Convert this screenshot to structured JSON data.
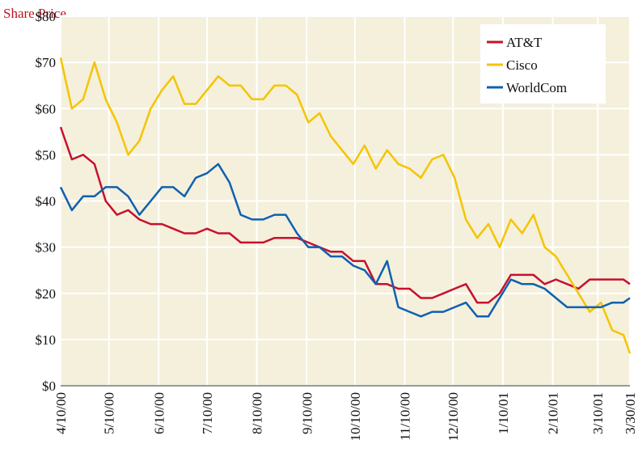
{
  "chart_data": {
    "type": "line",
    "title": "Share Price",
    "title_color": "#c0131e",
    "x": [
      "4/10/00",
      "4/17/00",
      "4/24/00",
      "5/1/00",
      "5/8/00",
      "5/15/00",
      "5/22/00",
      "5/29/00",
      "6/5/00",
      "6/12/00",
      "6/19/00",
      "6/26/00",
      "7/3/00",
      "7/10/00",
      "7/17/00",
      "7/24/00",
      "7/31/00",
      "8/7/00",
      "8/14/00",
      "8/21/00",
      "8/28/00",
      "9/4/00",
      "9/11/00",
      "9/18/00",
      "9/25/00",
      "10/2/00",
      "10/9/00",
      "10/16/00",
      "10/23/00",
      "10/30/00",
      "11/6/00",
      "11/13/00",
      "11/20/00",
      "11/27/00",
      "12/4/00",
      "12/11/00",
      "12/18/00",
      "12/25/00",
      "1/1/01",
      "1/8/01",
      "1/15/01",
      "1/22/01",
      "1/29/01",
      "2/5/01",
      "2/12/01",
      "2/19/01",
      "2/26/01",
      "3/5/01",
      "3/12/01",
      "3/19/01",
      "3/26/01",
      "3/30/01"
    ],
    "series": [
      {
        "name": "AT&T",
        "color": "#c8102e",
        "values": [
          56,
          49,
          50,
          48,
          40,
          37,
          38,
          36,
          35,
          35,
          34,
          33,
          33,
          34,
          33,
          33,
          31,
          31,
          31,
          32,
          32,
          32,
          31,
          30,
          29,
          29,
          27,
          27,
          22,
          22,
          21,
          21,
          19,
          19,
          20,
          21,
          22,
          18,
          18,
          20,
          24,
          24,
          24,
          22,
          23,
          22,
          21,
          23,
          23,
          23,
          23,
          22
        ]
      },
      {
        "name": "Cisco",
        "color": "#f5c400",
        "values": [
          71,
          60,
          62,
          70,
          62,
          57,
          50,
          53,
          60,
          64,
          67,
          61,
          61,
          64,
          67,
          65,
          65,
          62,
          62,
          65,
          65,
          63,
          57,
          59,
          54,
          51,
          48,
          52,
          47,
          51,
          48,
          47,
          45,
          49,
          50,
          45,
          36,
          32,
          35,
          30,
          36,
          33,
          37,
          30,
          28,
          24,
          20,
          16,
          18,
          12,
          11,
          7
        ]
      },
      {
        "name": "WorldCom",
        "color": "#1060b0",
        "values": [
          43,
          38,
          41,
          41,
          43,
          43,
          41,
          37,
          40,
          43,
          43,
          41,
          45,
          46,
          48,
          44,
          37,
          36,
          36,
          37,
          37,
          33,
          30,
          30,
          28,
          28,
          26,
          25,
          22,
          27,
          17,
          16,
          15,
          16,
          16,
          17,
          18,
          15,
          15,
          19,
          23,
          22,
          22,
          21,
          19,
          17,
          17,
          17,
          17,
          18,
          18,
          19
        ]
      }
    ],
    "xlim": [
      "4/10/00",
      "3/30/01"
    ],
    "xticks": [
      "4/10/00",
      "5/10/00",
      "6/10/00",
      "7/10/00",
      "8/10/00",
      "9/10/00",
      "10/10/00",
      "11/10/00",
      "12/10/00",
      "1/10/01",
      "2/10/01",
      "3/10/01",
      "3/30/01"
    ],
    "ylim": [
      0,
      80
    ],
    "yticks": [
      {
        "value": 0,
        "label": "$0"
      },
      {
        "value": 10,
        "label": "$10"
      },
      {
        "value": 20,
        "label": "$20"
      },
      {
        "value": 30,
        "label": "$30"
      },
      {
        "value": 40,
        "label": "$40"
      },
      {
        "value": 50,
        "label": "$50"
      },
      {
        "value": 60,
        "label": "$60"
      },
      {
        "value": 70,
        "label": "$70"
      },
      {
        "value": 80,
        "label": "$80"
      }
    ],
    "grid": true,
    "legend": "top-right",
    "background": "#f4f0dc"
  }
}
